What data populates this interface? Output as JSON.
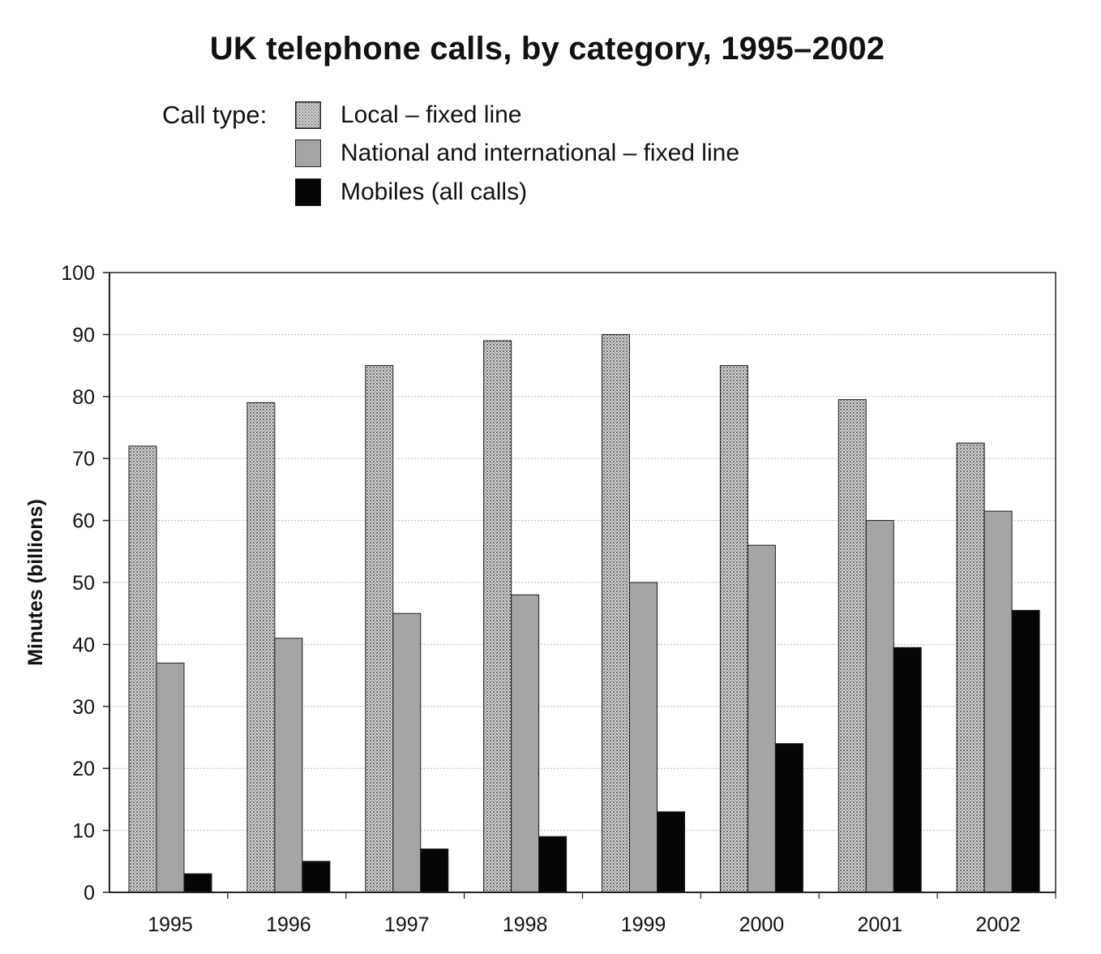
{
  "chart_data": {
    "type": "bar",
    "title": "UK telephone calls, by category, 1995–2002",
    "legend_title": "Call type:",
    "legend_position": "top",
    "ylabel": "Minutes (billions)",
    "xlabel": "",
    "ylim": [
      0,
      100
    ],
    "yticks": [
      "0",
      "10",
      "20",
      "30",
      "40",
      "50",
      "60",
      "70",
      "80",
      "90",
      "100"
    ],
    "grid": true,
    "categories": [
      "1995",
      "1996",
      "1997",
      "1998",
      "1999",
      "2000",
      "2001",
      "2002"
    ],
    "series": [
      {
        "name": "Local – fixed line",
        "values": [
          72,
          79,
          85,
          89,
          90,
          85,
          79.5,
          72.5
        ],
        "fill": "dotted-gray"
      },
      {
        "name": "National and international – fixed line",
        "values": [
          37,
          41,
          45,
          48,
          50,
          56,
          60,
          61.5
        ],
        "fill": "gray"
      },
      {
        "name": "Mobiles (all calls)",
        "values": [
          3,
          5,
          7,
          9,
          13,
          24,
          39.5,
          45.5
        ],
        "fill": "black"
      }
    ],
    "colors": {
      "local": "#9a9a9a",
      "national": "#a5a5a5",
      "mobile": "#050505",
      "grid": "#bdbdbd",
      "axis": "#222222"
    }
  }
}
